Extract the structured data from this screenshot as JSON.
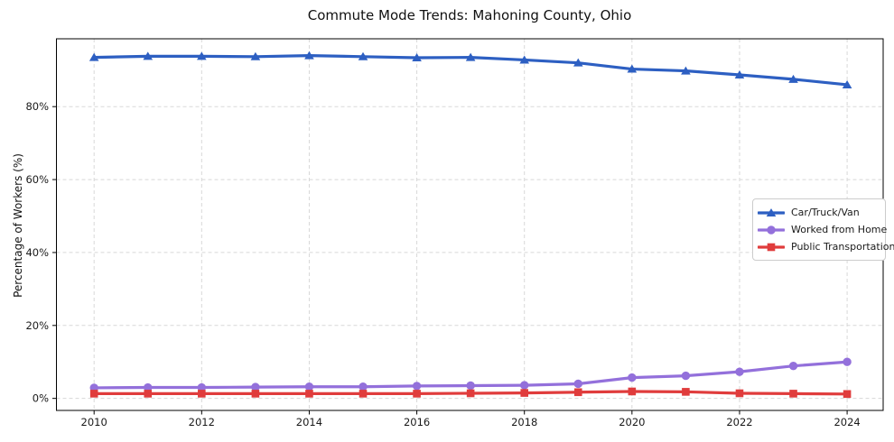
{
  "figure": {
    "title": "Commute Mode Trends: Mahoning County, Ohio",
    "ylabel": "Percentage of Workers (%)"
  },
  "chart_data": {
    "type": "line",
    "title": "Commute Mode Trends: Mahoning County, Ohio",
    "xlabel": "",
    "ylabel": "Percentage of Workers (%)",
    "x": [
      2010,
      2011,
      2012,
      2013,
      2014,
      2015,
      2016,
      2017,
      2018,
      2019,
      2020,
      2021,
      2022,
      2023,
      2024
    ],
    "x_ticks": [
      2010,
      2012,
      2014,
      2016,
      2018,
      2020,
      2022,
      2024
    ],
    "y_ticks": [
      0,
      20,
      40,
      60,
      80
    ],
    "y_tick_labels": [
      "0%",
      "20%",
      "40%",
      "60%",
      "80%"
    ],
    "xlim": [
      2009.3,
      2024.67
    ],
    "ylim": [
      -3.3,
      98.6
    ],
    "grid": true,
    "grid_style": "dashed",
    "grid_color": "#d8d8d8",
    "legend_position": "center-right",
    "series": [
      {
        "name": "Car/Truck/Van",
        "color": "#2d5fc2",
        "marker": "triangle",
        "values": [
          93.5,
          93.8,
          93.8,
          93.7,
          94.0,
          93.7,
          93.4,
          93.5,
          92.8,
          92.0,
          90.3,
          89.8,
          88.7,
          87.5,
          86.0
        ]
      },
      {
        "name": "Worked from Home",
        "color": "#9370db",
        "marker": "circle",
        "values": [
          2.9,
          3.0,
          3.0,
          3.1,
          3.2,
          3.2,
          3.4,
          3.5,
          3.6,
          4.0,
          5.7,
          6.2,
          7.3,
          8.9,
          10.0
        ]
      },
      {
        "name": "Public Transportation",
        "color": "#e03c3c",
        "marker": "square",
        "values": [
          1.3,
          1.3,
          1.3,
          1.3,
          1.3,
          1.3,
          1.3,
          1.4,
          1.5,
          1.7,
          1.9,
          1.8,
          1.4,
          1.3,
          1.2
        ]
      }
    ]
  }
}
